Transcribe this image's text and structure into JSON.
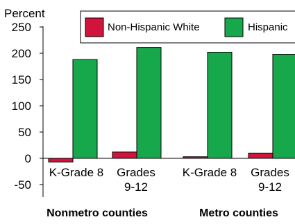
{
  "chart_data": {
    "type": "bar",
    "ylabel": "Percent",
    "ylim": [
      -50,
      250
    ],
    "yticks": [
      -50,
      0,
      50,
      100,
      150,
      200,
      250
    ],
    "ytick_labels": [
      "-50",
      "0",
      "50",
      "100",
      "150",
      "200",
      "250"
    ],
    "grid": false,
    "legend_position": "top",
    "groups": [
      {
        "label": "Nonmetro counties",
        "categories": [
          [
            "K-Grade 8"
          ],
          [
            "Grades",
            "9-12"
          ]
        ]
      },
      {
        "label": "Metro counties",
        "categories": [
          [
            "K-Grade 8"
          ],
          [
            "Grades",
            "9-12"
          ]
        ]
      }
    ],
    "categories": [
      "K-Grade 8",
      "Grades 9-12",
      "K-Grade 8",
      "Grades 9-12"
    ],
    "series": [
      {
        "name": "Non-Hispanic White",
        "color": "#D0143C",
        "values": [
          -7,
          12,
          3,
          10
        ]
      },
      {
        "name": "Hispanic",
        "color": "#18A84C",
        "values": [
          188,
          211,
          202,
          198
        ]
      }
    ]
  }
}
